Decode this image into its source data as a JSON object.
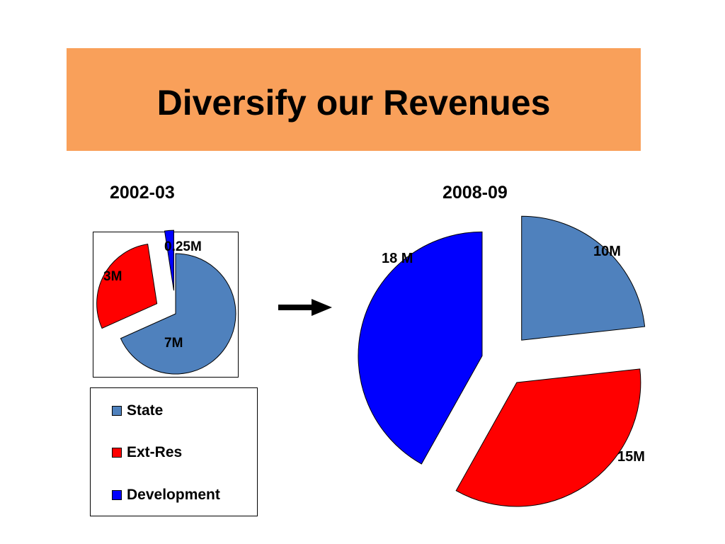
{
  "slide": {
    "title": "Diversify our Revenues",
    "left_period": "2002-03",
    "right_period": "2008-09"
  },
  "legend": {
    "items": [
      {
        "label": "State",
        "color": "#4f81bd"
      },
      {
        "label": "Ext-Res",
        "color": "#ff0000"
      },
      {
        "label": "Development",
        "color": "#0000ff"
      }
    ]
  },
  "colors": {
    "banner": "#f9a05a",
    "state": "#4f81bd",
    "ext_res": "#ff0000",
    "development": "#0000ff"
  },
  "chart_data": [
    {
      "type": "pie",
      "title": "2002-03",
      "categories": [
        "State",
        "Ext-Res",
        "Development"
      ],
      "values": [
        7,
        3,
        0.25
      ],
      "data_labels": [
        "7M",
        "3M",
        "0.25M"
      ],
      "exploded": true,
      "legend_placement": "below"
    },
    {
      "type": "pie",
      "title": "2008-09",
      "categories": [
        "State",
        "Ext-Res",
        "Development"
      ],
      "values": [
        10,
        15,
        18
      ],
      "data_labels": [
        "10M",
        "15M",
        "18 M"
      ],
      "exploded": true,
      "legend_placement": "none"
    }
  ]
}
